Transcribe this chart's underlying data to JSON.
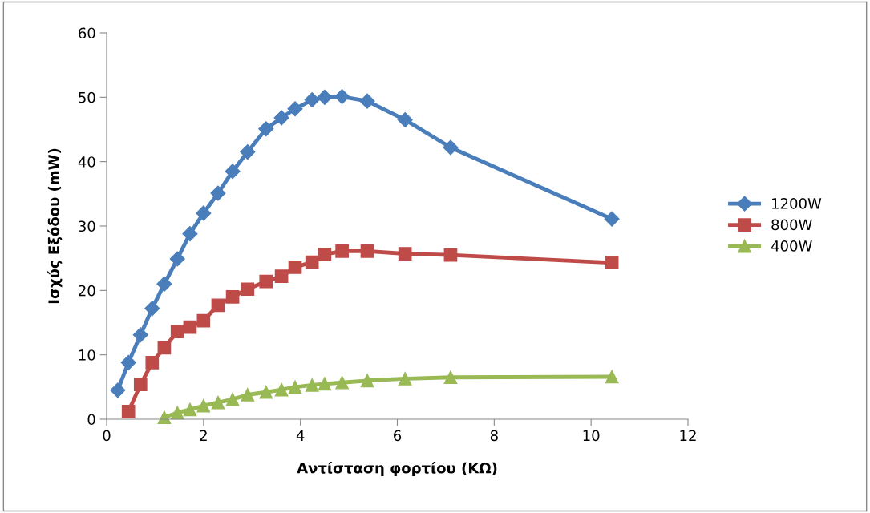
{
  "chart_data": {
    "type": "line",
    "xlabel": "Αντίσταση φορτίου (ΚΩ)",
    "ylabel": "Ισχύς Εξόδου (mW)",
    "xlim": [
      0,
      12
    ],
    "xticks": [
      0,
      2,
      4,
      6,
      8,
      10,
      12
    ],
    "ylim": [
      0,
      60
    ],
    "yticks": [
      0,
      10,
      20,
      30,
      40,
      50,
      60
    ],
    "grid": false,
    "legend": "right",
    "line_style": "solid",
    "series": [
      {
        "name": "1200W",
        "color": "#4a7ebb",
        "marker": "diamond",
        "x": [
          0.23,
          0.45,
          0.7,
          0.94,
          1.19,
          1.46,
          1.72,
          2.0,
          2.3,
          2.6,
          2.91,
          3.29,
          3.61,
          3.89,
          4.24,
          4.5,
          4.86,
          5.38,
          6.16,
          7.1,
          10.43
        ],
        "values": [
          4.5,
          8.8,
          13.1,
          17.2,
          21,
          24.9,
          28.8,
          32,
          35.1,
          38.5,
          41.5,
          45.1,
          46.8,
          48.2,
          49.6,
          50,
          50.1,
          49.4,
          46.5,
          42.2,
          31.1
        ]
      },
      {
        "name": "800W",
        "color": "#be4b48",
        "marker": "square",
        "x": [
          0.45,
          0.7,
          0.94,
          1.19,
          1.46,
          1.72,
          2.0,
          2.3,
          2.6,
          2.91,
          3.29,
          3.61,
          3.89,
          4.24,
          4.5,
          4.86,
          5.38,
          6.16,
          7.1,
          10.43
        ],
        "values": [
          1.2,
          5.4,
          8.8,
          11.1,
          13.6,
          14.3,
          15.3,
          17.7,
          19,
          20.2,
          21.4,
          22.2,
          23.6,
          24.4,
          25.6,
          26.1,
          26.1,
          25.7,
          25.5,
          24.3
        ]
      },
      {
        "name": "400W",
        "color": "#98b954",
        "marker": "triangle",
        "x": [
          1.19,
          1.46,
          1.72,
          2.0,
          2.3,
          2.6,
          2.91,
          3.29,
          3.61,
          3.89,
          4.24,
          4.5,
          4.86,
          5.38,
          6.16,
          7.1,
          10.43
        ],
        "values": [
          0.3,
          1.0,
          1.5,
          2.1,
          2.6,
          3.1,
          3.8,
          4.2,
          4.6,
          5.0,
          5.3,
          5.5,
          5.7,
          6.0,
          6.3,
          6.5,
          6.6
        ]
      }
    ]
  }
}
